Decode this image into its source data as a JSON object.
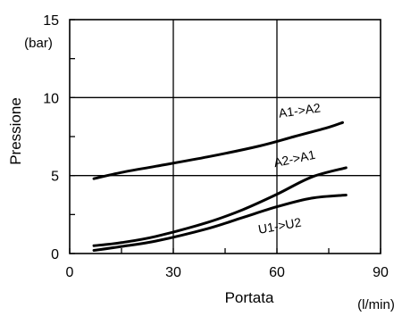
{
  "chart_data": {
    "type": "line",
    "xlabel": "Portata",
    "ylabel": "Pressione",
    "x_unit": "(l/min)",
    "y_unit": "(bar)",
    "xlim": [
      0,
      90
    ],
    "ylim": [
      0,
      15
    ],
    "x_ticks": [
      0,
      30,
      60,
      90
    ],
    "y_ticks": [
      0,
      5,
      10,
      15
    ],
    "grid": true,
    "series": [
      {
        "name": "A1->A2",
        "x": [
          7,
          15,
          25,
          40,
          55,
          65,
          75,
          79
        ],
        "y": [
          4.8,
          5.2,
          5.6,
          6.2,
          6.9,
          7.5,
          8.1,
          8.4
        ]
      },
      {
        "name": "A2->A1",
        "x": [
          7,
          15,
          25,
          40,
          50,
          60,
          70,
          80
        ],
        "y": [
          0.5,
          0.7,
          1.1,
          2.0,
          2.8,
          3.8,
          4.9,
          5.5
        ]
      },
      {
        "name": "U1->U2",
        "x": [
          7,
          15,
          25,
          40,
          50,
          60,
          70,
          80
        ],
        "y": [
          0.2,
          0.45,
          0.8,
          1.6,
          2.3,
          3.0,
          3.55,
          3.75
        ]
      }
    ]
  }
}
